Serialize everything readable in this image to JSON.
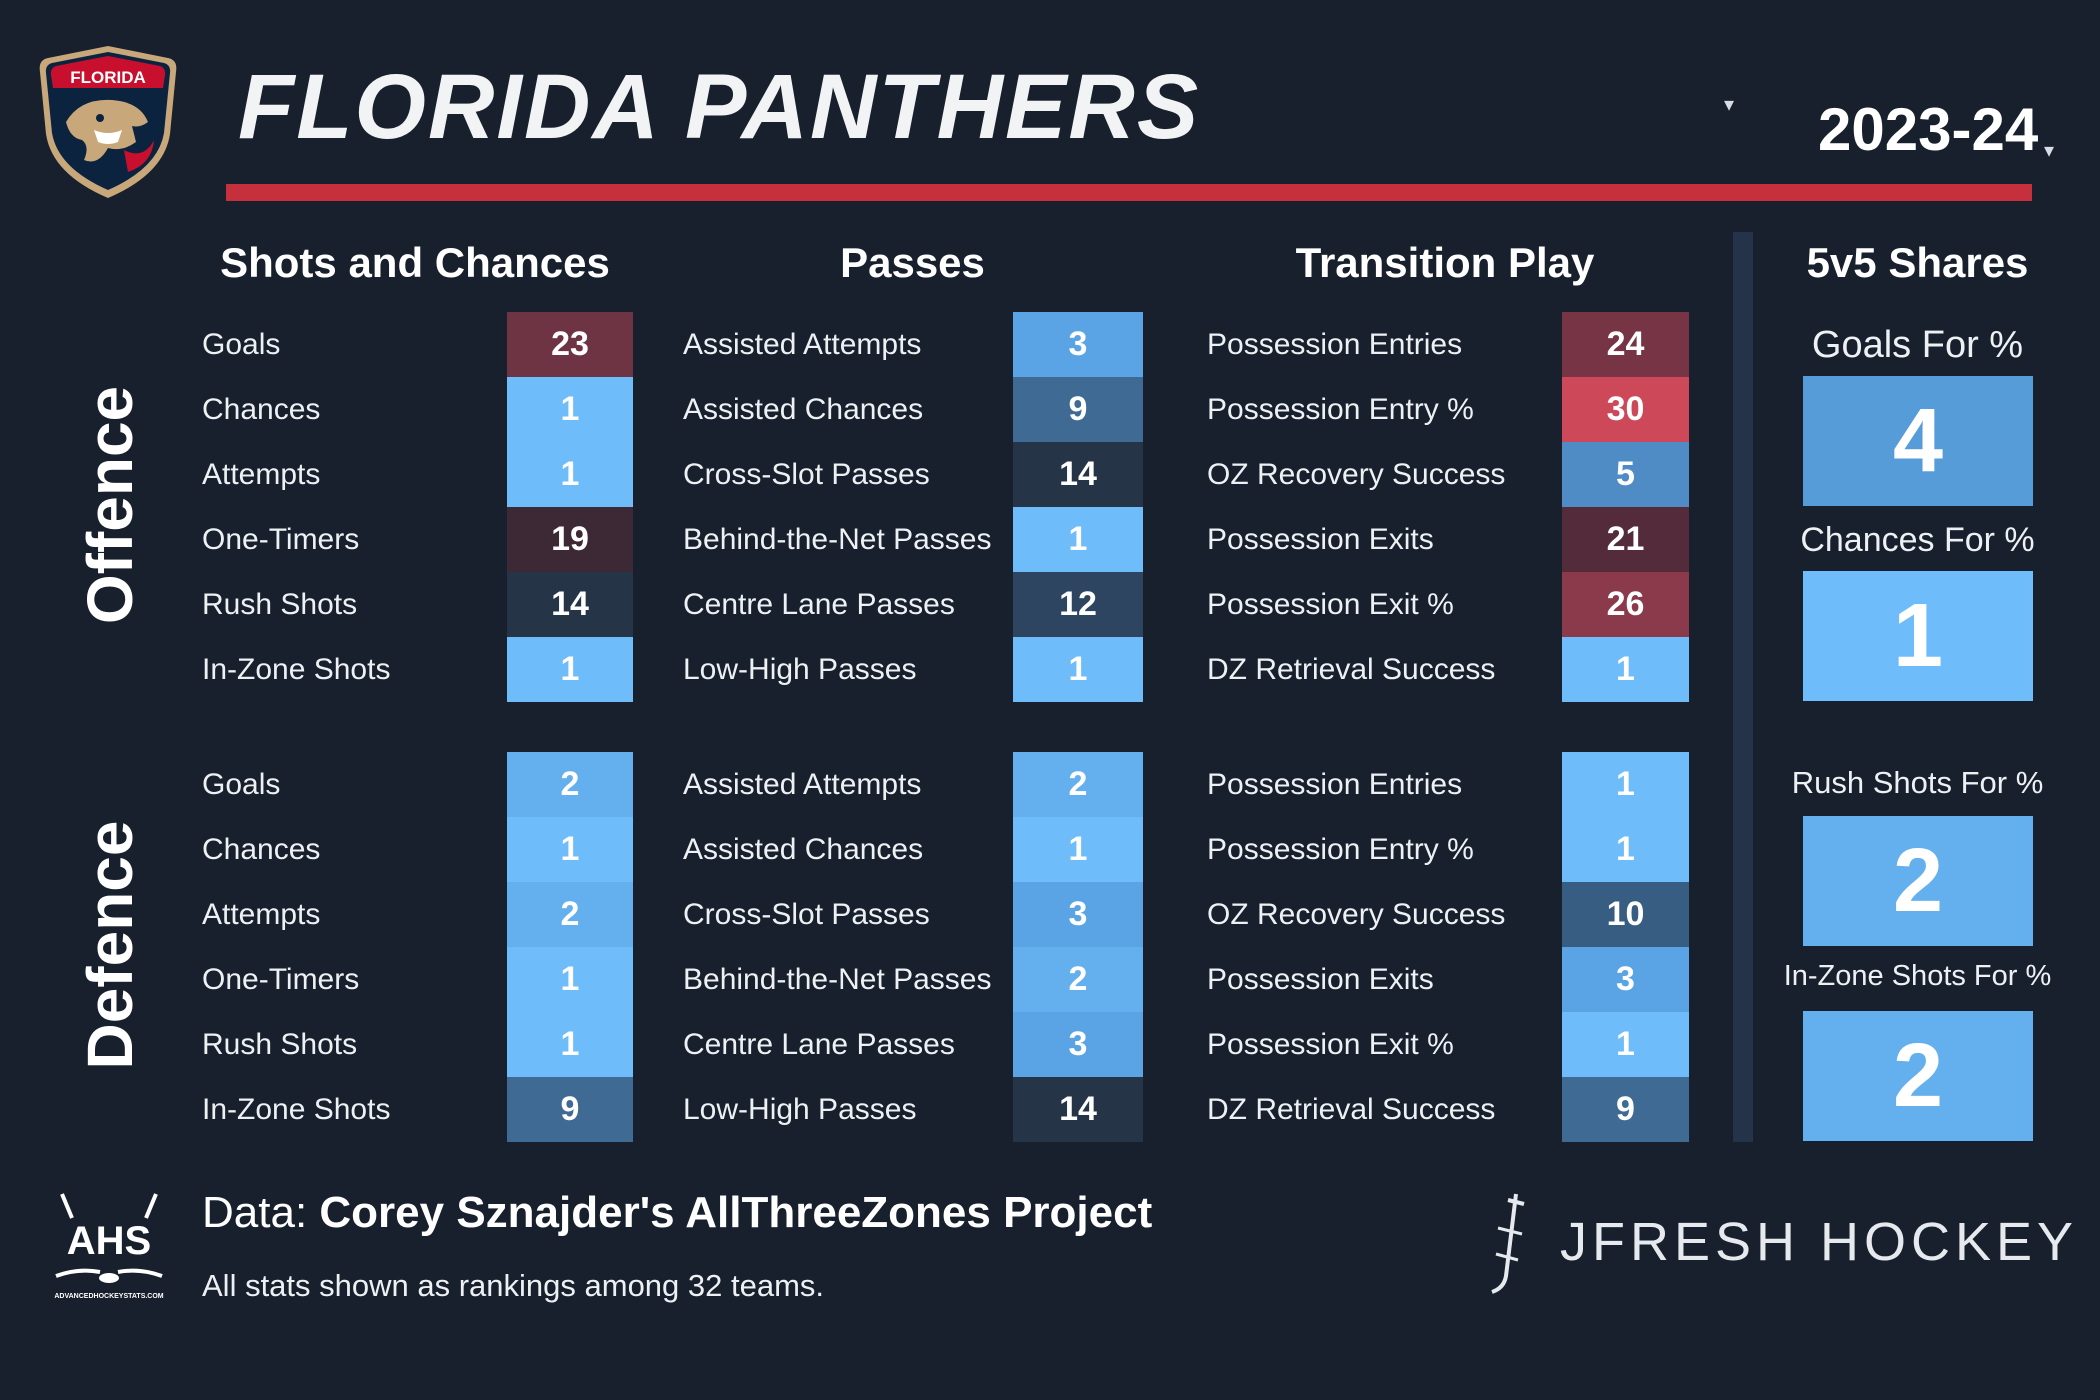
{
  "header": {
    "team_name": "FLORIDA PANTHERS",
    "season": "2023-24",
    "dropdown_glyph": "▾",
    "logo_text": "FLORIDA"
  },
  "sections": {
    "shots": "Shots and Chances",
    "passes": "Passes",
    "transition": "Transition Play",
    "shares": "5v5 Shares"
  },
  "side_labels": {
    "offence": "Offence",
    "defence": "Defence"
  },
  "colors": {
    "background": "#17202c",
    "red_rule": "#c62f3c",
    "divider": "#24334a"
  },
  "offence": {
    "shots": [
      {
        "label": "Goals",
        "rank": "23",
        "color": "#6e3443"
      },
      {
        "label": "Chances",
        "rank": "1",
        "color": "#6ebcf9"
      },
      {
        "label": "Attempts",
        "rank": "1",
        "color": "#6ebcf9"
      },
      {
        "label": "One-Timers",
        "rank": "19",
        "color": "#3d2936"
      },
      {
        "label": "Rush Shots",
        "rank": "14",
        "color": "#263447"
      },
      {
        "label": "In-Zone Shots",
        "rank": "1",
        "color": "#6ebcf9"
      }
    ],
    "passes": [
      {
        "label": "Assisted Attempts",
        "rank": "3",
        "color": "#5aa3e4"
      },
      {
        "label": "Assisted Chances",
        "rank": "9",
        "color": "#3e6a94"
      },
      {
        "label": "Cross-Slot Passes",
        "rank": "14",
        "color": "#263447"
      },
      {
        "label": "Behind-the-Net Passes",
        "rank": "1",
        "color": "#6ebcf9"
      },
      {
        "label": "Centre Lane Passes",
        "rank": "12",
        "color": "#2d4561"
      },
      {
        "label": "Low-High Passes",
        "rank": "1",
        "color": "#6ebcf9"
      }
    ],
    "transition": [
      {
        "label": "Possession Entries",
        "rank": "24",
        "color": "#763445"
      },
      {
        "label": "Possession Entry %",
        "rank": "30",
        "color": "#cd4959"
      },
      {
        "label": "OZ Recovery Success",
        "rank": "5",
        "color": "#4f8cc5"
      },
      {
        "label": "Possession Exits",
        "rank": "21",
        "color": "#542b3a"
      },
      {
        "label": "Possession Exit %",
        "rank": "26",
        "color": "#8a3a4b"
      },
      {
        "label": "DZ Retrieval Success",
        "rank": "1",
        "color": "#6ebcf9"
      }
    ]
  },
  "defence": {
    "shots": [
      {
        "label": "Goals",
        "rank": "2",
        "color": "#64afee"
      },
      {
        "label": "Chances",
        "rank": "1",
        "color": "#6ebcf9"
      },
      {
        "label": "Attempts",
        "rank": "2",
        "color": "#64afee"
      },
      {
        "label": "One-Timers",
        "rank": "1",
        "color": "#6ebcf9"
      },
      {
        "label": "Rush Shots",
        "rank": "1",
        "color": "#6ebcf9"
      },
      {
        "label": "In-Zone Shots",
        "rank": "9",
        "color": "#3e6a94"
      }
    ],
    "passes": [
      {
        "label": "Assisted Attempts",
        "rank": "2",
        "color": "#64afee"
      },
      {
        "label": "Assisted Chances",
        "rank": "1",
        "color": "#6ebcf9"
      },
      {
        "label": "Cross-Slot Passes",
        "rank": "3",
        "color": "#5aa3e4"
      },
      {
        "label": "Behind-the-Net Passes",
        "rank": "2",
        "color": "#64afee"
      },
      {
        "label": "Centre Lane Passes",
        "rank": "3",
        "color": "#5aa3e4"
      },
      {
        "label": "Low-High Passes",
        "rank": "14",
        "color": "#263447"
      }
    ],
    "transition": [
      {
        "label": "Possession Entries",
        "rank": "1",
        "color": "#6ebcf9"
      },
      {
        "label": "Possession Entry %",
        "rank": "1",
        "color": "#6ebcf9"
      },
      {
        "label": "OZ Recovery Success",
        "rank": "10",
        "color": "#375d83"
      },
      {
        "label": "Possession Exits",
        "rank": "3",
        "color": "#5aa3e4"
      },
      {
        "label": "Possession Exit %",
        "rank": "1",
        "color": "#6ebcf9"
      },
      {
        "label": "DZ Retrieval Success",
        "rank": "9",
        "color": "#3e6a94"
      }
    ]
  },
  "shares": [
    {
      "label": "Goals For %",
      "rank": "4",
      "color": "#559cd8"
    },
    {
      "label": "Chances For %",
      "rank": "1",
      "color": "#6ebcf9"
    },
    {
      "label": "Rush Shots For %",
      "rank": "2",
      "color": "#64afee"
    },
    {
      "label": "In-Zone Shots For %",
      "rank": "2",
      "color": "#64afee"
    }
  ],
  "footer": {
    "data_prefix": "Data: ",
    "data_source": "Corey Sznajder's AllThreeZones Project",
    "note": "All stats shown as rankings among 32 teams.",
    "ahs_text": "AHS",
    "ahs_url_text": "ADVANCEDHOCKEYSTATS.COM",
    "brand": "JFRESH HOCKEY"
  }
}
